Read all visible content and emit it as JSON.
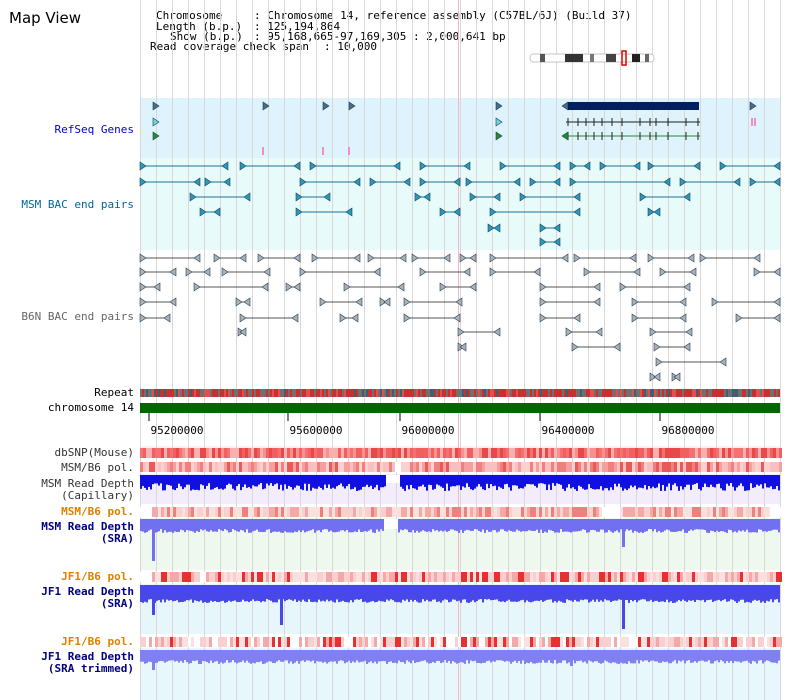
{
  "view": {
    "title": "Map View"
  },
  "info": {
    "chromosome_key": "Chromosome",
    "chromosome_val": ": Chromosome 14, reference assembly (C57BL/6J) (Build 37)",
    "length_key": "Length (b.p.)",
    "length_val": ": 125,194,864",
    "show_key": "Show (b.p.)",
    "show_val": ": 95,168,665-97,169,305 : 2,000,641 bp",
    "coverage_key": "Read coverage check span",
    "coverage_val": ": 10,000"
  },
  "tracks": {
    "refseq": "RefSeq Genes",
    "msm_bac": "MSM BAC end pairs",
    "b6n_bac": "B6N BAC end pairs",
    "repeat": "Repeat",
    "chromosome": "chromosome 14",
    "dbsnp": "dbSNP(Mouse)",
    "msm_b6_pol": "MSM/B6 pol.",
    "msm_read_depth_cap_1": "MSM Read Depth",
    "msm_read_depth_cap_2": "(Capillary)",
    "msm_b6_pol_2": "MSM/B6 pol.",
    "msm_read_depth_sra_1": "MSM Read Depth",
    "msm_read_depth_sra_2": "(SRA)",
    "jf1_b6_pol": "JF1/B6 pol.",
    "jf1_read_depth_sra_1": "JF1 Read Depth",
    "jf1_read_depth_sra_2": "(SRA)",
    "jf1_b6_pol_2": "JF1/B6 pol.",
    "jf1_read_depth_trim_1": "JF1 Read Depth",
    "jf1_read_depth_trim_2": "(SRA trimmed)"
  },
  "ruler": {
    "ticks": [
      "95200000",
      "95600000",
      "96000000",
      "96400000",
      "96800000"
    ]
  },
  "colors": {
    "refseq_label": "#0000cc",
    "msm_label": "#006699",
    "b6n_label": "#666666",
    "pol_label": "#e08000",
    "depth_label": "#000080",
    "gene_dark": "#002060",
    "chromosome_bar": "#006600"
  }
}
